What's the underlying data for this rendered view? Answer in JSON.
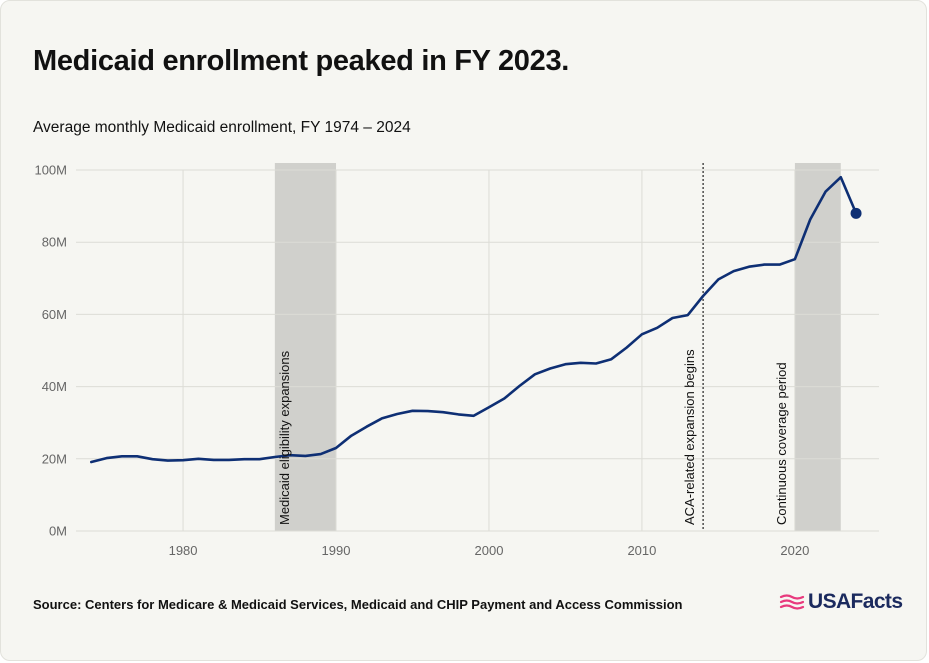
{
  "colors": {
    "background": "#f6f6f2",
    "line": "#0e2f74",
    "shade": "#d0d0cc",
    "grid": "#dcdcd6",
    "logo": "#1b2a5e",
    "logo_flag": "#e8397d"
  },
  "logo": {
    "text": "USAFacts",
    "icon": "flag-icon"
  },
  "source": "Source: Centers for Medicare & Medicaid Services, Medicaid and CHIP Payment and Access Commission",
  "chart_data": {
    "type": "line",
    "title": "Medicaid enrollment peaked in FY 2023.",
    "subtitle": "Average monthly Medicaid enrollment, FY 1974 – 2024",
    "xlabel": "",
    "ylabel": "",
    "xlim": [
      1973,
      2025.5
    ],
    "ylim": [
      0,
      100
    ],
    "x_ticks": [
      1980,
      1990,
      2000,
      2010,
      2020
    ],
    "y_ticks": [
      0,
      20,
      40,
      60,
      80,
      100
    ],
    "y_tick_labels": [
      "0M",
      "20M",
      "40M",
      "60M",
      "80M",
      "100M"
    ],
    "grid": true,
    "legend": "none",
    "series": [
      {
        "x": [
          1974,
          1975,
          1976,
          1977,
          1978,
          1979,
          1980,
          1981,
          1982,
          1983,
          1984,
          1985,
          1986,
          1987,
          1988,
          1989,
          1990,
          1991,
          1992,
          1993,
          1994,
          1995,
          1996,
          1997,
          1998,
          1999,
          2000,
          2001,
          2002,
          2003,
          2004,
          2005,
          2006,
          2007,
          2008,
          2009,
          2010,
          2011,
          2012,
          2013,
          2014,
          2015,
          2016,
          2017,
          2018,
          2019,
          2020,
          2021,
          2022,
          2023,
          2024
        ],
        "y": [
          19.1,
          20.2,
          20.7,
          20.7,
          19.9,
          19.5,
          19.6,
          20.0,
          19.7,
          19.7,
          19.9,
          19.9,
          20.5,
          21.0,
          20.8,
          21.3,
          23.0,
          26.4,
          28.9,
          31.2,
          32.4,
          33.3,
          33.2,
          32.9,
          32.3,
          31.9,
          34.3,
          36.7,
          40.2,
          43.4,
          45.0,
          46.2,
          46.6,
          46.4,
          47.6,
          50.8,
          54.5,
          56.3,
          59.0,
          59.8,
          65.1,
          69.7,
          72.0,
          73.2,
          73.8,
          73.8,
          75.3,
          86.3,
          94.0,
          98.0,
          88.0
        ]
      }
    ],
    "last_point_marker": true,
    "shaded_periods": [
      {
        "start": 1986,
        "end": 1990,
        "label": "Medicaid eligibility expansions"
      },
      {
        "start": 2020,
        "end": 2023,
        "label": "Continuous coverage period"
      }
    ],
    "vertical_markers": [
      {
        "x": 2014,
        "label": "ACA-related expansion begins",
        "style": "dotted"
      }
    ]
  }
}
